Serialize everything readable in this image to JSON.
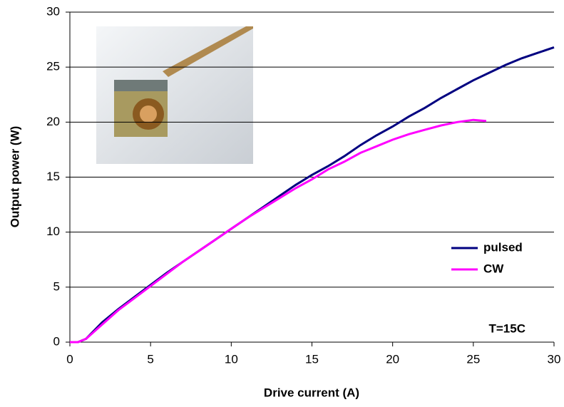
{
  "chart_data": {
    "type": "line",
    "xlabel": "Drive current (A)",
    "ylabel": "Output power (W)",
    "annotation": "T=15C",
    "xlim": [
      0,
      30
    ],
    "xticks": [
      0,
      5,
      10,
      15,
      20,
      25,
      30
    ],
    "ylim": [
      0,
      30
    ],
    "yticks": [
      0,
      5,
      10,
      15,
      20,
      25,
      30
    ],
    "grid": true,
    "legend": "right",
    "series": [
      {
        "name": "pulsed",
        "color": "#000080",
        "x": [
          0,
          0.5,
          1,
          2,
          3,
          4,
          5,
          6,
          7,
          8,
          9,
          10,
          11,
          12,
          13,
          14,
          15,
          16,
          17,
          18,
          19,
          20,
          21,
          22,
          23,
          24,
          25,
          26,
          27,
          28,
          29,
          30
        ],
        "values": [
          0,
          0,
          0.3,
          1.8,
          3,
          4.1,
          5.2,
          6.3,
          7.3,
          8.3,
          9.3,
          10.3,
          11.3,
          12.3,
          13.3,
          14.3,
          15.2,
          16,
          16.9,
          17.9,
          18.8,
          19.6,
          20.5,
          21.3,
          22.2,
          23,
          23.8,
          24.5,
          25.2,
          25.8,
          26.3,
          26.8
        ]
      },
      {
        "name": "CW",
        "color": "#ff00ff",
        "x": [
          0,
          0.5,
          1,
          2,
          3,
          4,
          5,
          6,
          7,
          8,
          9,
          10,
          11,
          12,
          13,
          14,
          15,
          16,
          17,
          18,
          19,
          20,
          21,
          22,
          23,
          24,
          25,
          25.8
        ],
        "values": [
          0,
          0,
          0.3,
          1.6,
          2.9,
          4,
          5.1,
          6.2,
          7.3,
          8.3,
          9.3,
          10.3,
          11.3,
          12.2,
          13.1,
          14,
          14.8,
          15.7,
          16.4,
          17.2,
          17.8,
          18.4,
          18.9,
          19.3,
          19.7,
          20,
          20.2,
          20.1
        ]
      }
    ]
  }
}
